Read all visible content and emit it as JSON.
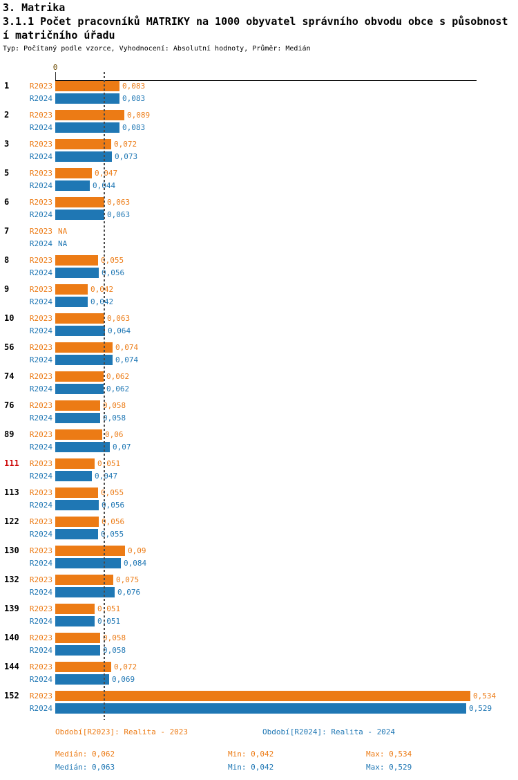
{
  "header": {
    "title": "3. Matrika",
    "subtitle_line1": "3.1.1 Počet pracovníků MATRIKY na 1000 obyvatel správního obvodu obce s působnost",
    "subtitle_line2": "í matričního úřadu",
    "meta": "Typ: Počítaný podle vzorce, Vyhodnocení: Absolutní hodnoty, Průměr: Medián"
  },
  "colors": {
    "r2023": "#ec7b15",
    "r2024": "#1f77b4",
    "highlight": "#cc0000",
    "median_line": "#4a4a4a",
    "axis": "#000000"
  },
  "chart_data": {
    "type": "bar",
    "orientation": "horizontal",
    "title": "3.1.1 Počet pracovníků MATRIKY na 1000 obyvatel správního obvodu obce s působností matričního úřadu",
    "xlabel": "",
    "ylabel": "",
    "xlim": [
      0,
      0.542
    ],
    "zero_label": "0",
    "grid": false,
    "legend_position": "bottom",
    "categories": [
      "1",
      "2",
      "3",
      "5",
      "6",
      "7",
      "8",
      "9",
      "10",
      "56",
      "74",
      "76",
      "89",
      "111",
      "113",
      "122",
      "130",
      "132",
      "139",
      "140",
      "144",
      "152"
    ],
    "highlighted_categories": [
      "111"
    ],
    "series": [
      {
        "name": "R2023",
        "color_key": "r2023",
        "values": [
          0.083,
          0.089,
          0.072,
          0.047,
          0.063,
          null,
          0.055,
          0.042,
          0.063,
          0.074,
          0.062,
          0.058,
          0.06,
          0.051,
          0.055,
          0.056,
          0.09,
          0.075,
          0.051,
          0.058,
          0.072,
          0.534
        ],
        "labels": [
          "0,083",
          "0,089",
          "0,072",
          "0,047",
          "0,063",
          "NA",
          "0,055",
          "0,042",
          "0,063",
          "0,074",
          "0,062",
          "0,058",
          "0,06",
          "0,051",
          "0,055",
          "0,056",
          "0,09",
          "0,075",
          "0,051",
          "0,058",
          "0,072",
          "0,534"
        ],
        "median": 0.062
      },
      {
        "name": "R2024",
        "color_key": "r2024",
        "values": [
          0.083,
          0.083,
          0.073,
          0.044,
          0.063,
          null,
          0.056,
          0.042,
          0.064,
          0.074,
          0.062,
          0.058,
          0.07,
          0.047,
          0.056,
          0.055,
          0.084,
          0.076,
          0.051,
          0.058,
          0.069,
          0.529
        ],
        "labels": [
          "0,083",
          "0,083",
          "0,073",
          "0,044",
          "0,063",
          "NA",
          "0,056",
          "0,042",
          "0,064",
          "0,074",
          "0,062",
          "0,058",
          "0,07",
          "0,047",
          "0,056",
          "0,055",
          "0,084",
          "0,076",
          "0,051",
          "0,058",
          "0,069",
          "0,529"
        ],
        "median": 0.063
      }
    ]
  },
  "legend": {
    "r2023": "Období[R2023]: Realita - 2023",
    "r2024": "Období[R2024]: Realita - 2024"
  },
  "stats": {
    "r2023": {
      "median": "Medián: 0,062",
      "min": "Min: 0,042",
      "max": "Max: 0,534"
    },
    "r2024": {
      "median": "Medián: 0,063",
      "min": "Min: 0,042",
      "max": "Max: 0,529"
    }
  }
}
